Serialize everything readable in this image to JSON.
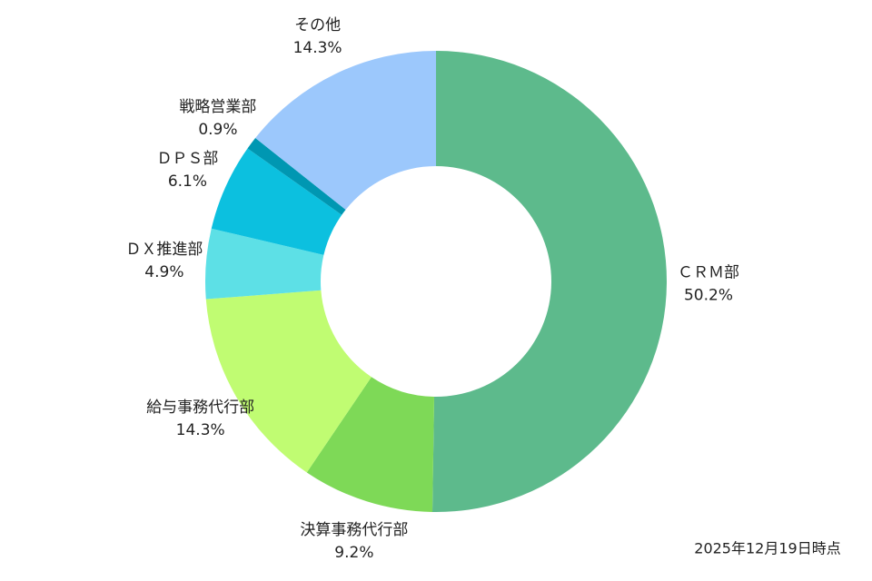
{
  "chart_data": {
    "type": "donut",
    "categories": [
      "CRM部",
      "決算事務代行部",
      "給与事務代行部",
      "DX推進部",
      "DPS部",
      "戦略営業部",
      "その他"
    ],
    "display_categories": [
      "ＣＲＭ部",
      "決算事務代行部",
      "給与事務代行部",
      "ＤＸ推進部",
      "ＤＰＳ部",
      "戦略営業部",
      "その他"
    ],
    "values": [
      50.2,
      9.2,
      14.3,
      4.9,
      6.1,
      0.9,
      14.3
    ],
    "value_labels": [
      "50.2%",
      "9.2%",
      "14.3%",
      "4.9%",
      "6.1%",
      "0.9%",
      "14.3%"
    ],
    "colors": [
      "#5dba8c",
      "#7ed957",
      "#c0fc72",
      "#5de0e6",
      "#0cc0df",
      "#0097b2",
      "#9cc8fc"
    ],
    "note": "2025年12月19日時点"
  }
}
